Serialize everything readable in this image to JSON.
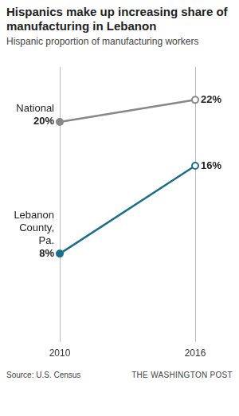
{
  "chart_data": {
    "type": "line",
    "title": "Hispanics make up increasing share of manufacturing in Lebanon",
    "subtitle": "Hispanic proportion of manufacturing workers",
    "source": "Source: U.S. Census",
    "credit": "THE WASHINGTON POST",
    "categories": [
      "2010",
      "2016"
    ],
    "series": [
      {
        "name": "National",
        "color": "#888888",
        "values": [
          20,
          22
        ],
        "value_labels": [
          "20%",
          "22%"
        ]
      },
      {
        "name": "Lebanon County, Pa.",
        "color": "#1a6e8c",
        "values": [
          8,
          16
        ],
        "value_labels": [
          "8%",
          "16%"
        ]
      }
    ],
    "ylim": [
      0,
      25
    ],
    "grid": true,
    "data_labels": true,
    "tick_labels": "x",
    "marker": "circle"
  }
}
